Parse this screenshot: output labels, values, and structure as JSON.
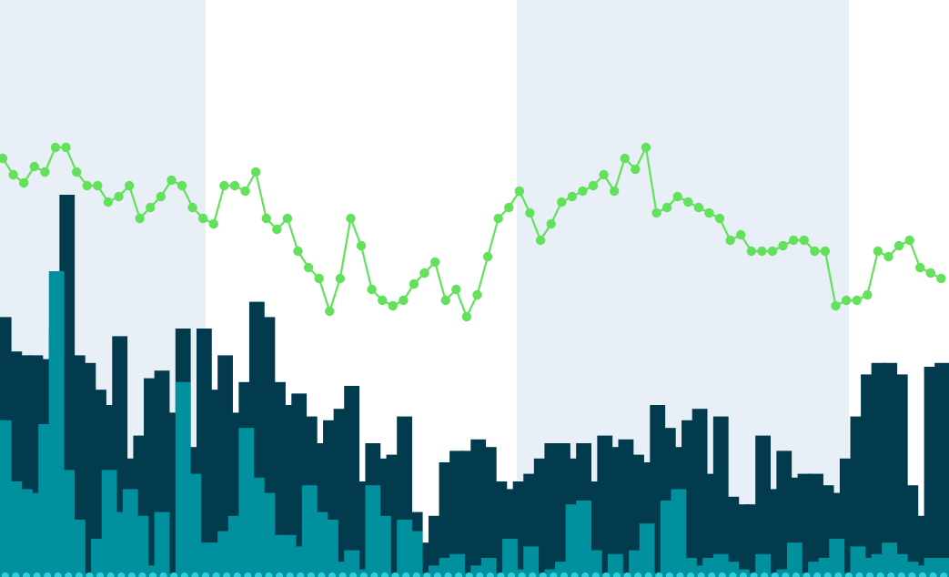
{
  "chart_data": {
    "type": "bar",
    "title": "",
    "xlabel": "",
    "ylabel": "",
    "ylim": [
      0,
      100
    ],
    "y2lim": [
      0,
      100
    ],
    "grid": false,
    "legend": "none",
    "colors": {
      "background": "#ffffff",
      "band": "#e9eff6",
      "bar_dark": "#023b4d",
      "bar_teal": "#00909e",
      "line": "#62e15b",
      "dots": "#2fcfdc"
    },
    "shaded_x_ranges": [
      [
        0,
        19
      ],
      [
        49,
        80
      ]
    ],
    "series": [
      {
        "kind": "bar",
        "values": [
          68,
          59,
          58,
          58,
          57,
          65,
          100,
          58,
          56,
          49,
          45,
          63,
          31,
          37,
          52,
          54,
          43,
          65,
          34,
          65,
          49,
          58,
          43,
          51,
          72,
          68,
          51,
          45,
          48,
          42,
          35,
          41,
          44,
          50,
          25,
          35,
          31,
          32,
          42,
          17,
          9,
          16,
          30,
          33,
          33,
          36,
          34,
          25,
          23,
          25,
          27,
          31,
          35,
          35,
          31,
          35,
          25,
          37,
          34,
          36,
          32,
          30,
          45,
          39,
          34,
          41,
          44,
          27,
          42,
          21,
          19,
          19,
          37,
          23,
          33,
          26,
          27,
          27,
          24,
          22,
          31,
          42,
          53,
          56,
          56,
          53,
          24,
          16,
          55,
          56
        ]
      },
      {
        "kind": "bar",
        "values": [
          41,
          25,
          23,
          22,
          40,
          80,
          28,
          15,
          1,
          10,
          28,
          17,
          23,
          16,
          3,
          17,
          1,
          51,
          27,
          9,
          9,
          12,
          16,
          39,
          26,
          22,
          11,
          11,
          8,
          24,
          17,
          15,
          4,
          7,
          2,
          24,
          16,
          1,
          15,
          12,
          1,
          3,
          5,
          6,
          1,
          3,
          5,
          1,
          10,
          2,
          8,
          1,
          2,
          4,
          19,
          20,
          7,
          1,
          6,
          1,
          7,
          14,
          1,
          20,
          23,
          5,
          3,
          5,
          6,
          4,
          2,
          1,
          6,
          1,
          2,
          9,
          1,
          4,
          5,
          10,
          1,
          8,
          5,
          6,
          9,
          6,
          4,
          3,
          5,
          5
        ]
      },
      {
        "kind": "line",
        "axis": "right",
        "values": [
          92,
          86,
          83,
          89,
          87,
          96,
          96,
          87,
          82,
          82,
          76,
          78,
          82,
          70,
          74,
          78,
          84,
          82,
          74,
          70,
          68,
          82,
          82,
          80,
          87,
          70,
          66,
          70,
          58,
          52,
          48,
          36,
          48,
          70,
          60,
          44,
          40,
          38,
          40,
          46,
          50,
          54,
          40,
          44,
          34,
          42,
          56,
          70,
          74,
          80,
          72,
          62,
          68,
          76,
          78,
          80,
          82,
          86,
          80,
          92,
          88,
          96,
          72,
          74,
          78,
          76,
          74,
          72,
          70,
          62,
          64,
          58,
          58,
          58,
          60,
          62,
          62,
          58,
          58,
          38,
          40,
          40,
          42,
          58,
          56,
          60,
          62,
          52,
          50,
          48
        ]
      }
    ]
  }
}
